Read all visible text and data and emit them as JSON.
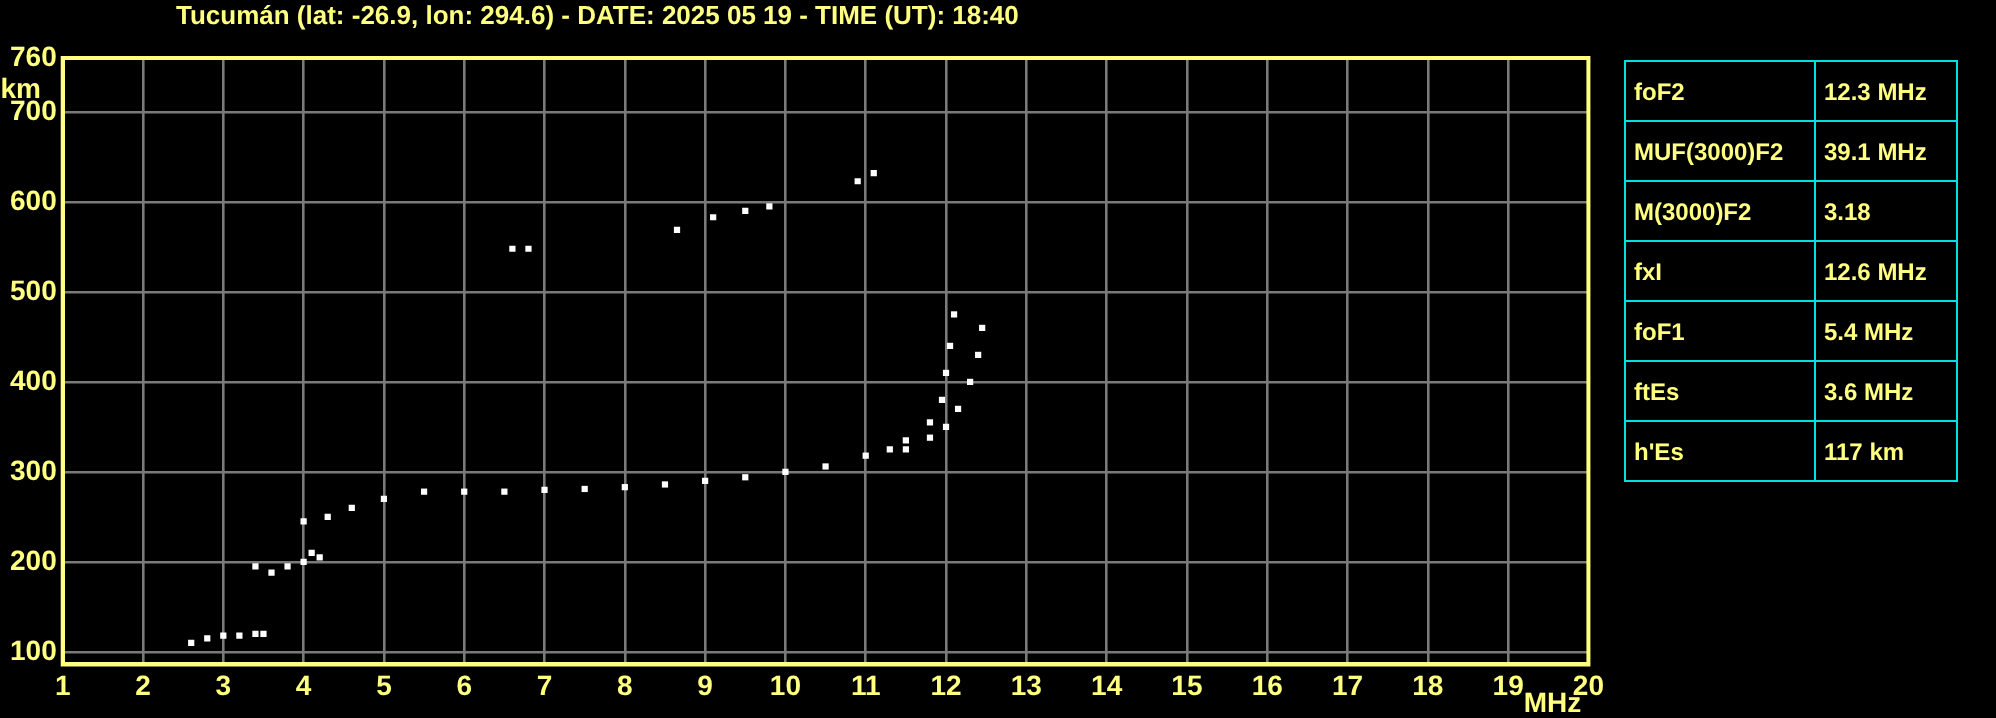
{
  "chart_data": [
    {
      "type": "scatter",
      "title": "Tucumán (lat: -26.9, lon: 294.6) - DATE: 2025 05 19 - TIME (UT): 18:40",
      "xlabel": "MHz",
      "ylabel": "km",
      "xlim": [
        1,
        20
      ],
      "xticks": [
        1,
        2,
        3,
        4,
        5,
        6,
        7,
        8,
        9,
        10,
        11,
        12,
        13,
        14,
        15,
        16,
        17,
        18,
        19,
        20
      ],
      "ylim": [
        86,
        760
      ],
      "yticks": [
        100,
        200,
        300,
        400,
        500,
        600,
        700,
        760
      ],
      "grid": true,
      "marker": "square",
      "series": [
        {
          "color": "#ffffff",
          "x": [
            2.6,
            2.8,
            3.0,
            3.2,
            3.4,
            3.5,
            3.4,
            3.6,
            3.8,
            4.0,
            4.1,
            4.2,
            4.0,
            4.3,
            4.6,
            5.0,
            5.5,
            6.0,
            6.5,
            7.0,
            7.5,
            8.0,
            8.5,
            9.0,
            9.5,
            10.0,
            10.5,
            11.0,
            11.3,
            11.5,
            11.8,
            11.95,
            12.0,
            12.05,
            12.1,
            11.5,
            11.8,
            12.0,
            12.15,
            12.3,
            12.4,
            12.45,
            6.6,
            6.8,
            8.65,
            9.1,
            9.5,
            9.8,
            10.9,
            11.1
          ],
          "values": [
            110,
            115,
            118,
            118,
            120,
            120,
            195,
            188,
            195,
            200,
            210,
            205,
            245,
            250,
            260,
            270,
            278,
            278,
            278,
            280,
            281,
            283,
            286,
            290,
            294,
            300,
            306,
            318,
            325,
            335,
            355,
            380,
            410,
            440,
            475,
            325,
            338,
            350,
            370,
            400,
            430,
            460,
            548,
            548,
            569,
            583,
            590,
            595,
            623,
            632
          ]
        }
      ]
    },
    {
      "type": "other",
      "categories": [
        "foF2",
        "MUF(3000)F2",
        "M(3000)F2",
        "fxI",
        "foF1",
        "ftEs",
        "h'Es"
      ],
      "value_labels": [
        "12.3 MHz",
        "39.1 MHz",
        "3.18",
        "12.6 MHz",
        "5.4 MHz",
        "3.6 MHz",
        "117 km"
      ]
    }
  ]
}
